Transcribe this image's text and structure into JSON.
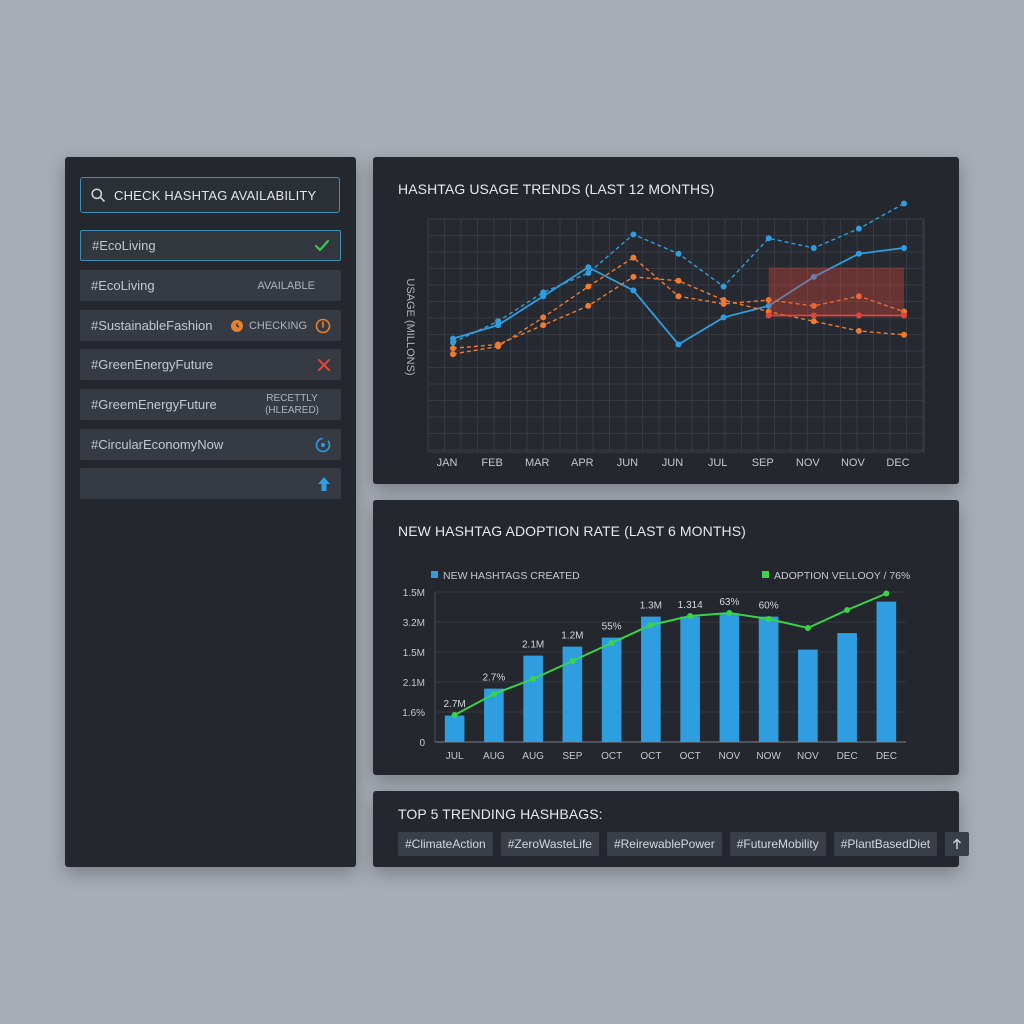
{
  "checker": {
    "search_label": "CHECK HASHTAG AVAILABILITY",
    "rows": [
      {
        "tag": "#EcoLiving",
        "status": "",
        "icon": "check-icon"
      },
      {
        "tag": "#EcoLiving",
        "status": "AVAILABLE",
        "icon": ""
      },
      {
        "tag": "#SustainableFashion",
        "status": "CHECKING",
        "icon": "clock-icon"
      },
      {
        "tag": "#GreenEnergyFuture",
        "status": "",
        "icon": "x-icon"
      },
      {
        "tag": "#GreemEnergyFuture",
        "status_line1": "RECETTLY",
        "status_line2": "(HLEARED)",
        "icon": ""
      },
      {
        "tag": "#CircularEconomyNow",
        "status": "",
        "icon": "target-icon"
      },
      {
        "tag": "",
        "status": "",
        "icon": "upload-arrow-icon"
      }
    ]
  },
  "trend_panel": {
    "title": "HASHTAG USAGE TRENDS (LAST 12 MONTHS)"
  },
  "adoption_panel": {
    "title": "NEW HASHTAG ADOPTION RATE (LAST 6 MONTHS)"
  },
  "trending_panel": {
    "title": "TOP 5 TRENDING HASHBAGS:",
    "chips": [
      "#ClimateAction",
      "#ZeroWasteLife",
      "#ReirewablePower",
      "#FutureMobility",
      "#PlantBasedDiet"
    ],
    "more_icon": "arrow-up-icon"
  },
  "colors": {
    "accent_blue": "#2f9ee0",
    "accent_orange": "#f07a30",
    "accent_red": "#e2453a",
    "accent_green": "#3ad44a",
    "check_green": "#35c856"
  },
  "chart_data": [
    {
      "type": "line",
      "title": "HASHTAG USAGE TRENDS (LAST 12 MONTHS)",
      "ylabel": "USAGE (MILLONS)",
      "xlabel": "",
      "categories": [
        "JAN",
        "FEB",
        "MAR",
        "APR",
        "JUN",
        "JUN",
        "JUL",
        "SEP",
        "NOV",
        "NOV",
        "DEC"
      ],
      "ylim": [
        0,
        100
      ],
      "grid": true,
      "series": [
        {
          "color": "#2f9ee0",
          "style": "solid",
          "values": [
            38,
            45,
            60,
            75,
            63,
            35,
            49,
            55,
            70,
            82,
            85
          ]
        },
        {
          "color": "#2f9ee0",
          "style": "dashed",
          "values": [
            36,
            47,
            62,
            72,
            92,
            82,
            65,
            90,
            85,
            95,
            108
          ]
        },
        {
          "color": "#f07a30",
          "style": "dashed",
          "values": [
            30,
            34,
            49,
            65,
            80,
            60,
            56,
            58,
            55,
            60,
            52
          ]
        },
        {
          "color": "#f07a30",
          "style": "dashed",
          "values": [
            33,
            35,
            45,
            55,
            70,
            68,
            58,
            52,
            47,
            42,
            40
          ]
        },
        {
          "color": "#e2453a",
          "style": "solid",
          "values": [
            null,
            null,
            null,
            null,
            null,
            null,
            null,
            50,
            50,
            50,
            50
          ]
        }
      ]
    },
    {
      "type": "bar",
      "title": "NEW HASHTAG ADOPTION RATE (LAST 6 MONTHS)",
      "legend_position": "top",
      "yticks": [
        "0",
        "1.6%",
        "2.1M",
        "1.5M",
        "3.2M",
        "1.5M"
      ],
      "categories": [
        "JUL",
        "AUG",
        "AUG",
        "SEP",
        "OCT",
        "OCT",
        "OCT",
        "NOV",
        "NOW",
        "NOV",
        "DEC",
        "DEC"
      ],
      "ylim": [
        0,
        5
      ],
      "grid": true,
      "series": [
        {
          "name": "NEW HASHTAGS CREATED",
          "color": "#2f9ee0",
          "type": "bar",
          "values": [
            0.88,
            1.78,
            2.88,
            3.18,
            3.48,
            4.18,
            4.18,
            4.28,
            4.18,
            3.08,
            3.63,
            4.68
          ]
        },
        {
          "name": "ADOPTION VELLOOY / 76%",
          "color": "#3ad44a",
          "type": "line",
          "values": [
            0.9,
            1.6,
            2.1,
            2.7,
            3.3,
            3.9,
            4.2,
            4.3,
            4.1,
            3.8,
            4.4,
            4.95
          ]
        }
      ],
      "data_labels": [
        {
          "index": 0,
          "text": "2.7M"
        },
        {
          "index": 1,
          "text": "2.7%"
        },
        {
          "index": 2,
          "text": "2.1M"
        },
        {
          "index": 3,
          "text": "1.2M"
        },
        {
          "index": 4,
          "text": "55%"
        },
        {
          "index": 5,
          "text": "1.3M"
        },
        {
          "index": 6,
          "text": "1.314"
        },
        {
          "index": 7,
          "text": "63%"
        },
        {
          "index": 8,
          "text": "60%"
        }
      ]
    }
  ]
}
